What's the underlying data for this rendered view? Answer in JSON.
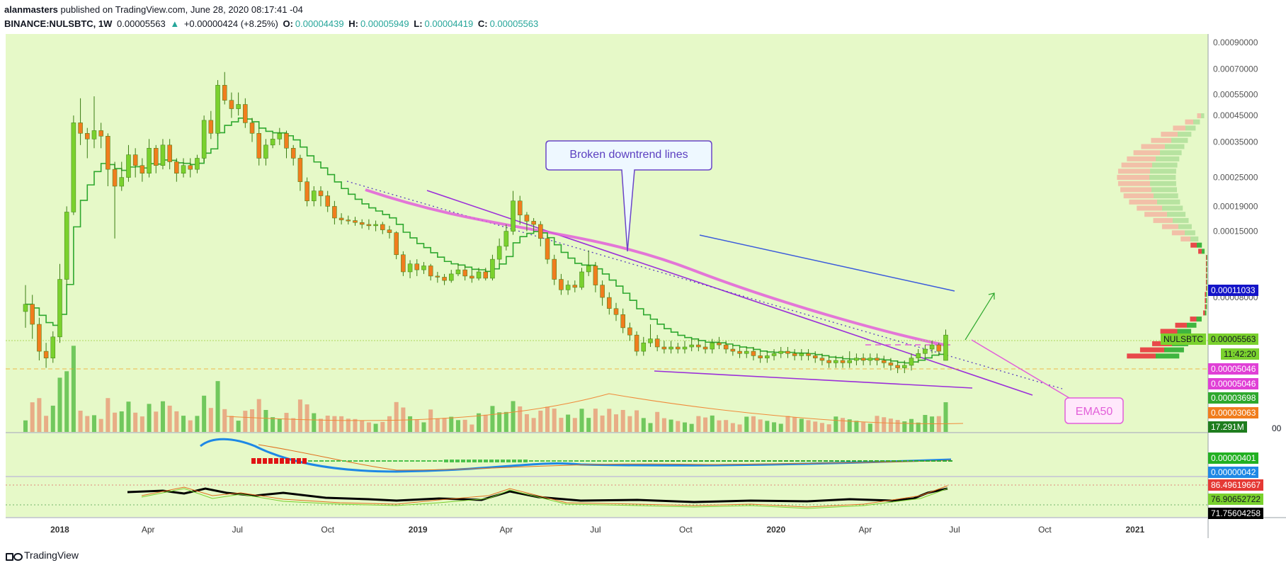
{
  "header": {
    "author": "alanmasters",
    "published_text": "published on TradingView.com, June 28, 2020 08:17:41 -04",
    "symbol": "BINANCE:NULSBTC, 1W",
    "last": "0.00005563",
    "change": "+0.00000424 (+8.25%)",
    "o_label": "O:",
    "o": "0.00004439",
    "h_label": "H:",
    "h": "0.00005949",
    "l_label": "L:",
    "l": "0.00004419",
    "c_label": "C:",
    "c": "0.00005563"
  },
  "annotations": {
    "downtrend": "Broken downtrend lines",
    "ema": "EMA50"
  },
  "price_axis": {
    "ticks": [
      "0.00090000",
      "0.00070000",
      "0.00055000",
      "0.00045000",
      "0.00035000",
      "0.00025000",
      "0.00019000",
      "0.00015000",
      "0.00008000"
    ],
    "labels": {
      "last_symbol": "NULSBTC",
      "last_price": "0.00005563",
      "countdown": "11:42:20",
      "ma_a": "0.00005046",
      "ma_b": "0.00005046",
      "level_blue": "0.00011033",
      "vol_a": "0.00003698",
      "vol_b": "0.00003063",
      "volume": "17.291M",
      "vol_axis_zero": "00"
    }
  },
  "macd_axis": {
    "a": "0.00000401",
    "b": "0.00000042"
  },
  "rsi_axis": {
    "a": "86.49619667",
    "b": "76.90652722",
    "c": "71.75604258"
  },
  "time_axis": [
    "2018",
    "Apr",
    "Jul",
    "Oct",
    "2019",
    "Apr",
    "Jul",
    "Oct",
    "2020",
    "Apr",
    "Jul",
    "Oct",
    "2021"
  ],
  "footer": {
    "brand": "TradingView"
  },
  "colors": {
    "bg": "#e6f9c8",
    "up": "#7ad12e",
    "down": "#f07d1e",
    "ema": "#2ea82e",
    "pink": "#e25fd9",
    "purple": "#9b2fd9",
    "blue": "#3b5bdb"
  },
  "chart_data": {
    "type": "candlestick",
    "title": "BINANCE:NULSBTC, 1W",
    "scale": "log",
    "ylim": [
      3e-05,
      0.00095
    ],
    "x_start": "2017-11-27",
    "x_end": "2021-03-15",
    "candles": [
      [
        "2017-11-27",
        7e-05,
        7.5e-05,
        9e-05,
        6e-05
      ],
      [
        "2017-12-04",
        7.5e-05,
        6.2e-05,
        8.2e-05,
        5.4e-05
      ],
      [
        "2017-12-11",
        6.2e-05,
        4.8e-05,
        6.6e-05,
        4.4e-05
      ],
      [
        "2017-12-18",
        4.8e-05,
        4.5e-05,
        5.2e-05,
        4.1e-05
      ],
      [
        "2017-12-25",
        4.5e-05,
        5.5e-05,
        5.8e-05,
        4.3e-05
      ],
      [
        "2018-01-01",
        5.5e-05,
        9.5e-05,
        0.00011,
        5.2e-05
      ],
      [
        "2018-01-08",
        9.5e-05,
        0.00018,
        0.00019,
        9e-05
      ],
      [
        "2018-01-15",
        0.00018,
        0.00042,
        0.00045,
        0.000175
      ],
      [
        "2018-01-22",
        0.00042,
        0.00038,
        0.00053,
        0.00034
      ],
      [
        "2018-01-29",
        0.00038,
        0.00036,
        0.0004,
        0.0003
      ],
      [
        "2018-02-05",
        0.00036,
        0.00039,
        0.00054,
        0.00033
      ],
      [
        "2018-02-12",
        0.00039,
        0.00037,
        0.00042,
        0.00033
      ],
      [
        "2018-02-19",
        0.00037,
        0.00027,
        0.00038,
        0.00023
      ],
      [
        "2018-02-26",
        0.00027,
        0.00023,
        0.00029,
        0.00014
      ],
      [
        "2018-03-05",
        0.00023,
        0.00025,
        0.00029,
        0.00022
      ],
      [
        "2018-03-12",
        0.00025,
        0.00031,
        0.00034,
        0.00024
      ],
      [
        "2018-03-19",
        0.00031,
        0.00028,
        0.00033,
        0.00025
      ],
      [
        "2018-03-26",
        0.00028,
        0.00026,
        0.0003,
        0.00024
      ],
      [
        "2018-04-02",
        0.00026,
        0.00033,
        0.00036,
        0.00025
      ],
      [
        "2018-04-09",
        0.00033,
        0.00028,
        0.00034,
        0.00026
      ],
      [
        "2018-04-16",
        0.00028,
        0.00034,
        0.00036,
        0.00027
      ],
      [
        "2018-04-23",
        0.00034,
        0.00029,
        0.00036,
        0.00027
      ],
      [
        "2018-04-30",
        0.00029,
        0.00026,
        0.0003,
        0.00024
      ],
      [
        "2018-05-07",
        0.00026,
        0.00028,
        0.0003,
        0.00025
      ],
      [
        "2018-05-14",
        0.00028,
        0.00027,
        0.0003,
        0.00025
      ],
      [
        "2018-05-21",
        0.00027,
        0.0003,
        0.00031,
        0.00026
      ],
      [
        "2018-05-28",
        0.0003,
        0.00043,
        0.00045,
        0.00029
      ],
      [
        "2018-06-04",
        0.00043,
        0.00038,
        0.00047,
        0.00036
      ],
      [
        "2018-06-11",
        0.00038,
        0.0006,
        0.00063,
        0.00037
      ],
      [
        "2018-06-18",
        0.0006,
        0.00052,
        0.00068,
        0.0005
      ],
      [
        "2018-06-25",
        0.00052,
        0.00048,
        0.00056,
        0.00044
      ],
      [
        "2018-07-02",
        0.00048,
        0.0005,
        0.00056,
        0.00045
      ],
      [
        "2018-07-09",
        0.0005,
        0.00042,
        0.00053,
        0.0004
      ],
      [
        "2018-07-16",
        0.00042,
        0.00038,
        0.00044,
        0.00035
      ],
      [
        "2018-07-23",
        0.00038,
        0.0003,
        0.0004,
        0.00028
      ],
      [
        "2018-07-30",
        0.0003,
        0.00034,
        0.00036,
        0.00028
      ],
      [
        "2018-08-06",
        0.00034,
        0.00036,
        0.00038,
        0.00033
      ],
      [
        "2018-08-13",
        0.00036,
        0.00038,
        0.0004,
        0.00034
      ],
      [
        "2018-08-20",
        0.00038,
        0.00033,
        0.00039,
        0.0003
      ],
      [
        "2018-08-27",
        0.00033,
        0.0003,
        0.00034,
        0.00028
      ],
      [
        "2018-09-03",
        0.0003,
        0.00024,
        0.00031,
        0.00022
      ],
      [
        "2018-09-10",
        0.00024,
        0.0002,
        0.00025,
        0.00019
      ],
      [
        "2018-09-17",
        0.0002,
        0.00022,
        0.00023,
        0.00019
      ],
      [
        "2018-09-24",
        0.00022,
        0.00021,
        0.00023,
        0.00019
      ],
      [
        "2018-10-01",
        0.00021,
        0.00019,
        0.00022,
        0.00018
      ],
      [
        "2018-10-08",
        0.00019,
        0.00017,
        0.0002,
        0.00016
      ],
      [
        "2018-10-15",
        0.00017,
        0.000167,
        0.000178,
        0.00016
      ],
      [
        "2018-10-22",
        0.000167,
        0.000166,
        0.000174,
        0.00016
      ],
      [
        "2018-10-29",
        0.000166,
        0.000163,
        0.000172,
        0.000158
      ],
      [
        "2018-11-05",
        0.000163,
        0.00016,
        0.000168,
        0.000154
      ],
      [
        "2018-11-12",
        0.00016,
        0.000158,
        0.000168,
        0.000152
      ],
      [
        "2018-11-19",
        0.000158,
        0.00016,
        0.000166,
        0.00015
      ],
      [
        "2018-11-26",
        0.00016,
        0.000152,
        0.000164,
        0.000146
      ],
      [
        "2018-12-03",
        0.000152,
        0.000148,
        0.000158,
        0.00014
      ],
      [
        "2018-12-10",
        0.000148,
        0.00012,
        0.00015,
        0.000115
      ],
      [
        "2018-12-17",
        0.00012,
        0.000102,
        0.000124,
        9.8e-05
      ],
      [
        "2018-12-24",
        0.000102,
        0.00011,
        0.000114,
        9.6e-05
      ],
      [
        "2018-12-31",
        0.00011,
        0.000104,
        0.000115,
        9.8e-05
      ],
      [
        "2019-01-07",
        0.000104,
        0.000108,
        0.000112,
        0.0001
      ],
      [
        "2019-01-14",
        0.000108,
        9.8e-05,
        0.00011,
        9.4e-05
      ],
      [
        "2019-01-21",
        9.8e-05,
        9.7e-05,
        0.000102,
        9.2e-05
      ],
      [
        "2019-01-28",
        9.7e-05,
        9.4e-05,
        0.0001,
        9e-05
      ],
      [
        "2019-02-04",
        9.4e-05,
        0.0001,
        0.000104,
        9.2e-05
      ],
      [
        "2019-02-11",
        0.0001,
        0.000104,
        0.00011,
        9.8e-05
      ],
      [
        "2019-02-18",
        0.000104,
        9.8e-05,
        0.000108,
        9.4e-05
      ],
      [
        "2019-02-25",
        9.8e-05,
        9.6e-05,
        0.000104,
        9.2e-05
      ],
      [
        "2019-03-04",
        9.6e-05,
        0.000102,
        0.000106,
        9.4e-05
      ],
      [
        "2019-03-11",
        0.000102,
        9.6e-05,
        0.000106,
        9.4e-05
      ],
      [
        "2019-03-18",
        9.6e-05,
        0.000115,
        0.00012,
        9.4e-05
      ],
      [
        "2019-03-25",
        0.000115,
        0.00013,
        0.00014,
        0.00011
      ],
      [
        "2019-04-01",
        0.00013,
        0.00015,
        0.00016,
        0.000125
      ],
      [
        "2019-04-08",
        0.00015,
        0.0002,
        0.00022,
        0.000145
      ],
      [
        "2019-04-15",
        0.0002,
        0.000175,
        0.00021,
        0.00016
      ],
      [
        "2019-04-22",
        0.000175,
        0.000165,
        0.00018,
        0.00015
      ],
      [
        "2019-04-29",
        0.000165,
        0.00016,
        0.00017,
        0.00015
      ],
      [
        "2019-05-06",
        0.00016,
        0.00014,
        0.000165,
        0.00013
      ],
      [
        "2019-05-13",
        0.00014,
        0.000115,
        0.000145,
        0.00011
      ],
      [
        "2019-05-20",
        0.000115,
        9.5e-05,
        0.00012,
        9e-05
      ],
      [
        "2019-05-27",
        9.5e-05,
        8.6e-05,
        0.0001,
        8.2e-05
      ],
      [
        "2019-06-03",
        8.6e-05,
        9e-05,
        9.4e-05,
        8.2e-05
      ],
      [
        "2019-06-10",
        9e-05,
        8.8e-05,
        9.4e-05,
        8.4e-05
      ],
      [
        "2019-06-17",
        8.8e-05,
        0.000102,
        0.000106,
        8.6e-05
      ],
      [
        "2019-06-24",
        0.000102,
        0.000108,
        0.000125,
        9.8e-05
      ],
      [
        "2019-07-01",
        0.000108,
        9e-05,
        0.000112,
        8.4e-05
      ],
      [
        "2019-07-08",
        9e-05,
        8e-05,
        9.4e-05,
        7.4e-05
      ],
      [
        "2019-07-15",
        8e-05,
        7.2e-05,
        8.4e-05,
        6.8e-05
      ],
      [
        "2019-07-22",
        7.2e-05,
        6.8e-05,
        7.6e-05,
        6.4e-05
      ],
      [
        "2019-07-29",
        6.8e-05,
        6e-05,
        7.2e-05,
        5.7e-05
      ],
      [
        "2019-08-05",
        6e-05,
        5.6e-05,
        6.3e-05,
        5.3e-05
      ],
      [
        "2019-08-12",
        5.6e-05,
        4.8e-05,
        5.8e-05,
        4.6e-05
      ],
      [
        "2019-08-19",
        4.8e-05,
        5.2e-05,
        5.5e-05,
        4.6e-05
      ],
      [
        "2019-08-26",
        5.2e-05,
        5.4e-05,
        6.2e-05,
        5e-05
      ],
      [
        "2019-09-02",
        5.4e-05,
        5e-05,
        5.6e-05,
        4.8e-05
      ],
      [
        "2019-09-09",
        5e-05,
        4.9e-05,
        5.3e-05,
        4.7e-05
      ],
      [
        "2019-09-16",
        4.9e-05,
        5e-05,
        5.3e-05,
        4.7e-05
      ],
      [
        "2019-09-23",
        5e-05,
        4.9e-05,
        5.2e-05,
        4.7e-05
      ],
      [
        "2019-09-30",
        4.9e-05,
        5e-05,
        5.3e-05,
        4.7e-05
      ],
      [
        "2019-10-07",
        5e-05,
        5.1e-05,
        5.4e-05,
        4.8e-05
      ],
      [
        "2019-10-14",
        5.1e-05,
        5e-05,
        5.4e-05,
        4.8e-05
      ],
      [
        "2019-10-21",
        5e-05,
        4.9e-05,
        5.2e-05,
        4.7e-05
      ],
      [
        "2019-10-28",
        4.9e-05,
        5.2e-05,
        5.4e-05,
        4.7e-05
      ],
      [
        "2019-11-04",
        5.2e-05,
        5.1e-05,
        5.5e-05,
        4.9e-05
      ],
      [
        "2019-11-11",
        5.1e-05,
        4.9e-05,
        5.3e-05,
        4.7e-05
      ],
      [
        "2019-11-18",
        4.9e-05,
        4.8e-05,
        5.1e-05,
        4.6e-05
      ],
      [
        "2019-11-25",
        4.8e-05,
        4.7e-05,
        5e-05,
        4.5e-05
      ],
      [
        "2019-12-02",
        4.7e-05,
        4.8e-05,
        5e-05,
        4.5e-05
      ],
      [
        "2019-12-09",
        4.8e-05,
        4.6e-05,
        5e-05,
        4.4e-05
      ],
      [
        "2019-12-16",
        4.6e-05,
        4.5e-05,
        4.8e-05,
        4.3e-05
      ],
      [
        "2019-12-23",
        4.5e-05,
        4.6e-05,
        4.8e-05,
        4.3e-05
      ],
      [
        "2019-12-30",
        4.6e-05,
        4.7e-05,
        4.9e-05,
        4.4e-05
      ],
      [
        "2020-01-06",
        4.7e-05,
        4.8e-05,
        5e-05,
        4.5e-05
      ],
      [
        "2020-01-13",
        4.8e-05,
        4.7e-05,
        5e-05,
        4.5e-05
      ],
      [
        "2020-01-20",
        4.7e-05,
        4.6e-05,
        4.9e-05,
        4.4e-05
      ],
      [
        "2020-01-27",
        4.6e-05,
        4.7e-05,
        4.9e-05,
        4.4e-05
      ],
      [
        "2020-02-03",
        4.7e-05,
        4.6e-05,
        4.9e-05,
        4.4e-05
      ],
      [
        "2020-02-10",
        4.6e-05,
        4.5e-05,
        4.8e-05,
        4.3e-05
      ],
      [
        "2020-02-17",
        4.5e-05,
        4.4e-05,
        4.7e-05,
        4.2e-05
      ],
      [
        "2020-02-24",
        4.4e-05,
        4.3e-05,
        4.6e-05,
        4.1e-05
      ],
      [
        "2020-03-02",
        4.3e-05,
        4.4e-05,
        4.6e-05,
        4.1e-05
      ],
      [
        "2020-03-09",
        4.4e-05,
        4.3e-05,
        4.6e-05,
        4.1e-05
      ],
      [
        "2020-03-16",
        4.3e-05,
        4.4e-05,
        4.8e-05,
        4.1e-05
      ],
      [
        "2020-03-23",
        4.4e-05,
        4.5e-05,
        4.7e-05,
        4.2e-05
      ],
      [
        "2020-03-30",
        4.5e-05,
        4.4e-05,
        4.7e-05,
        4.2e-05
      ],
      [
        "2020-04-06",
        4.4e-05,
        4.5e-05,
        4.7e-05,
        4.2e-05
      ],
      [
        "2020-04-13",
        4.5e-05,
        4.4e-05,
        4.7e-05,
        4.2e-05
      ],
      [
        "2020-04-20",
        4.4e-05,
        4.3e-05,
        4.6e-05,
        4.1e-05
      ],
      [
        "2020-04-27",
        4.3e-05,
        4.2e-05,
        4.5e-05,
        4e-05
      ],
      [
        "2020-05-04",
        4.2e-05,
        4.1e-05,
        4.4e-05,
        3.9e-05
      ],
      [
        "2020-05-11",
        4.1e-05,
        4.2e-05,
        4.4e-05,
        3.9e-05
      ],
      [
        "2020-05-18",
        4.2e-05,
        4.5e-05,
        4.7e-05,
        4e-05
      ],
      [
        "2020-05-25",
        4.5e-05,
        4.7e-05,
        4.9e-05,
        4.3e-05
      ],
      [
        "2020-06-01",
        4.7e-05,
        4.9e-05,
        5.1e-05,
        4.5e-05
      ],
      [
        "2020-06-08",
        4.9e-05,
        5.1e-05,
        5.3e-05,
        4.7e-05
      ],
      [
        "2020-06-15",
        5.1e-05,
        4.8e-05,
        5.2e-05,
        4.6e-05
      ],
      [
        "2020-06-22",
        4.4e-05,
        5.6e-05,
        5.9e-05,
        4.4e-05
      ]
    ]
  }
}
